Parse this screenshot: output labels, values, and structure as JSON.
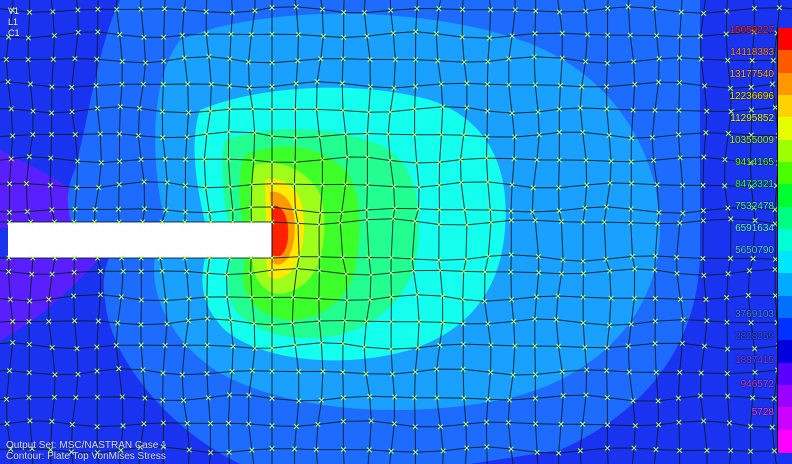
{
  "view": {
    "axes": {
      "y_label": "V1",
      "l_label": "L1",
      "c_label": "C1"
    },
    "output_set_label": "Output Set: MSC/NASTRAN Case 1",
    "contour_label": "Contour: Plate Top VonMises Stress"
  },
  "legend": {
    "colors": [
      "#ff0000",
      "#ff5a00",
      "#ff9800",
      "#ffd200",
      "#e6ff00",
      "#9eff00",
      "#4cff00",
      "#00ff2e",
      "#00ff80",
      "#00ffd2",
      "#00e6ff",
      "#00aaff",
      "#0070ff",
      "#0032ff",
      "#0000dc",
      "#5a00ff",
      "#9a00ff",
      "#cc00ff",
      "#ff00ff"
    ],
    "entries": [
      {
        "value": "15059227",
        "color": "#ff2a2a"
      },
      {
        "value": "14118383",
        "color": "#ff8a55"
      },
      {
        "value": "13177540",
        "color": "#ffb044"
      },
      {
        "value": "12236696",
        "color": "#ffe600"
      },
      {
        "value": "11295852",
        "color": "#e6ff33"
      },
      {
        "value": "10355009",
        "color": "#9eff33"
      },
      {
        "value": "9414165",
        "color": "#66ff33"
      },
      {
        "value": "8473321",
        "color": "#33ff55"
      },
      {
        "value": "7532478",
        "color": "#55ffaa"
      },
      {
        "value": "6591634",
        "color": "#66ffee"
      },
      {
        "value": "5650790",
        "color": "#55ddff"
      },
      {
        "value": "3769103",
        "color": "#4488ff"
      },
      {
        "value": "2828259",
        "color": "#3355ff"
      },
      {
        "value": "1887415",
        "color": "#7744ff"
      },
      {
        "value": "946572",
        "color": "#bb44ff"
      },
      {
        "value": "5728",
        "color": "#ff44ff"
      }
    ]
  }
}
